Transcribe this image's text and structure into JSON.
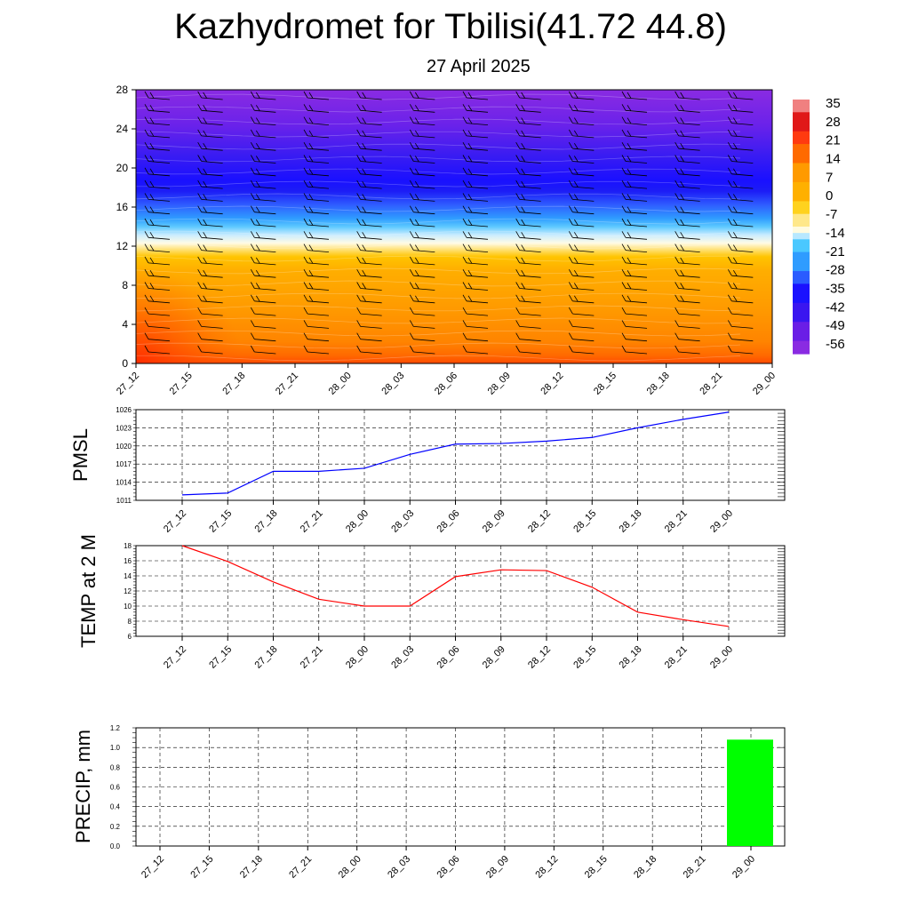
{
  "title": "Kazhydromet for Tbilisi(41.72 44.8)",
  "subtitle": "27 April 2025",
  "chart_data": [
    {
      "type": "heatmap",
      "description_of_field": "temperature cross-section with wind barbs",
      "xticks": [
        "27_12",
        "27_15",
        "27_18",
        "27_21",
        "28_00",
        "28_03",
        "28_06",
        "28_09",
        "28_12",
        "28_15",
        "28_18",
        "28_21",
        "29_00"
      ],
      "yticks": [
        0,
        4,
        8,
        12,
        16,
        20,
        24,
        28
      ],
      "ylim": [
        0,
        28
      ],
      "colorbar_labels": [
        "35",
        "28",
        "21",
        "14",
        "7",
        "0",
        "-7",
        "-14",
        "-21",
        "-28",
        "-35",
        "-42",
        "-49",
        "-56"
      ],
      "colorbar_range": [
        -62,
        40
      ]
    },
    {
      "type": "line",
      "ylabel": "PMSL",
      "x": [
        "27_12",
        "27_15",
        "27_18",
        "27_21",
        "28_00",
        "28_03",
        "28_06",
        "28_09",
        "28_12",
        "28_15",
        "28_18",
        "28_21",
        "29_00"
      ],
      "yticks": [
        1011,
        1014,
        1017,
        1020,
        1023,
        1026
      ],
      "ylim": [
        1011,
        1026
      ],
      "color": "#0000ff",
      "series": [
        {
          "values": [
            1011.9,
            1012.2,
            1015.8,
            1015.8,
            1016.3,
            1018.6,
            1020.3,
            1020.4,
            1020.8,
            1021.4,
            1023.0,
            1024.4,
            1025.6
          ]
        }
      ]
    },
    {
      "type": "line",
      "ylabel": "TEMP at 2 M",
      "x": [
        "27_12",
        "27_15",
        "27_18",
        "27_21",
        "28_00",
        "28_03",
        "28_06",
        "28_09",
        "28_12",
        "28_15",
        "28_18",
        "28_21",
        "29_00"
      ],
      "yticks": [
        6,
        8,
        10,
        12,
        14,
        16,
        18
      ],
      "ylim": [
        6,
        18
      ],
      "color": "#ff0000",
      "series": [
        {
          "values": [
            18.0,
            15.9,
            13.2,
            10.9,
            10.0,
            10.0,
            13.9,
            14.8,
            14.7,
            12.5,
            9.2,
            8.2,
            7.3
          ]
        }
      ]
    },
    {
      "type": "bar",
      "ylabel": "PRECIP, mm",
      "categories": [
        "27_12",
        "27_15",
        "27_18",
        "27_21",
        "28_00",
        "28_03",
        "28_06",
        "28_09",
        "28_12",
        "28_15",
        "28_18",
        "28_21",
        "29_00"
      ],
      "yticks": [
        "0.0",
        "0.2",
        "0.4",
        "0.6",
        "0.8",
        "1.0",
        "1.2"
      ],
      "ylim": [
        0,
        1.2
      ],
      "color": "#00ff00",
      "values": [
        0,
        0,
        0,
        0,
        0,
        0,
        0,
        0,
        0,
        0,
        0,
        0,
        1.08
      ]
    }
  ]
}
